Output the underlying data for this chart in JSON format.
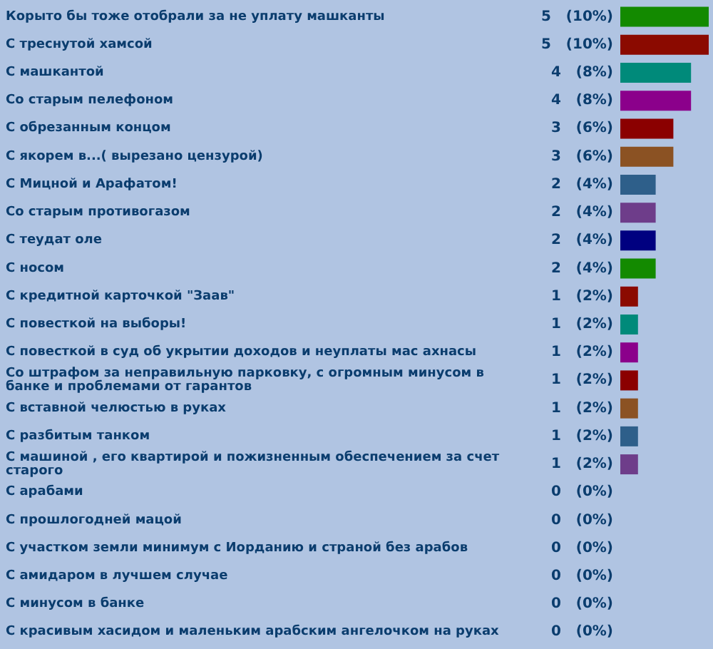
{
  "chart_data": {
    "type": "bar",
    "orientation": "horizontal",
    "categories": [
      "Корыто бы тоже отобрали за не уплату машканты",
      "С треснутой хамсой",
      "С машкантой",
      "Со старым пелефоном",
      "С обрезанным концом",
      "С якорем в...( вырезано цензурой)",
      "С Мицной и Арафатом!",
      "Со старым противогазом",
      "С теудат оле",
      "С носом",
      "С кредитной карточкой \"Заав\"",
      "С повесткой на выборы!",
      "С повесткой в суд об укрытии доходов и неуплаты мас ахнасы",
      "Со штрафом за неправильную парковку, с огромным минусом в банке и проблемами от гарантов",
      "С вставной челюстью в руках",
      "С разбитым танком",
      "С машиной , его квартирой и пожизненным обеспечением за счет старого",
      "С арабами",
      "С прошлогодней мацой",
      "С участком земли минимум с Иорданию и страной без арабов",
      "С амидаром в лучшем случае",
      "С минусом в банке",
      "С красивым хасидом и маленьким арабским ангелочком на руках"
    ],
    "values": [
      5,
      5,
      4,
      4,
      3,
      3,
      2,
      2,
      2,
      2,
      1,
      1,
      1,
      1,
      1,
      1,
      1,
      0,
      0,
      0,
      0,
      0,
      0
    ],
    "colors": [
      "#138a00",
      "#8b0a00",
      "#008a7a",
      "#8b008b",
      "#8b0000",
      "#8b5223",
      "#2e5f8a",
      "#6e3d8a",
      "#000080",
      "#138a00",
      "#8b0a00",
      "#008a7a",
      "#8b008b",
      "#8b0000",
      "#8b5223",
      "#2e5f8a",
      "#6e3d8a",
      "#000080",
      "#138a00",
      "#8b0a00",
      "#008a7a",
      "#8b008b",
      "#8b0000"
    ],
    "value_labels": [
      "5   (10%)",
      "5   (10%)",
      "4   (8%)",
      "4   (8%)",
      "3   (6%)",
      "3   (6%)",
      "2   (4%)",
      "2   (4%)",
      "2   (4%)",
      "2   (4%)",
      "1   (2%)",
      "1   (2%)",
      "1   (2%)",
      "1   (2%)",
      "1   (2%)",
      "1   (2%)",
      "1   (2%)",
      "0   (0%)",
      "0   (0%)",
      "0   (0%)",
      "0   (0%)",
      "0   (0%)",
      "0   (0%)"
    ],
    "tick_labels": "y"
  }
}
